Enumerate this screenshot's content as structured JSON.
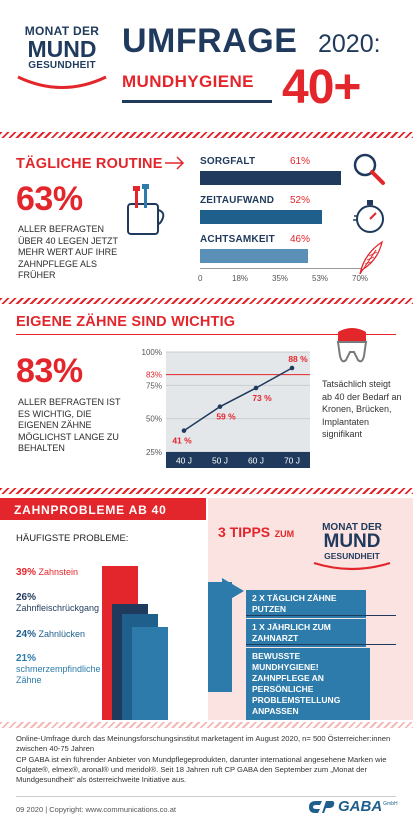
{
  "header": {
    "logo_line1": "MONAT DER",
    "logo_line2": "MUND",
    "logo_line3": "GESUNDHEIT",
    "title": "UMFRAGE",
    "year": "2020:",
    "subtitle": "MUNDHYGIENE",
    "age": "40+"
  },
  "routine": {
    "title": "TÄGLICHE ROUTINE",
    "big_pct": "63%",
    "text": "ALLER BEFRAGTEN ÜBER 40 LEGEN JETZT MEHR WERT AUF IHRE ZAHNPFLEGE ALS FRÜHER",
    "bars": [
      {
        "label": "SORGFALT",
        "pct": "61%",
        "value": 61
      },
      {
        "label": "ZEITAUFWAND",
        "pct": "52%",
        "value": 52
      },
      {
        "label": "ACHTSAMKEIT",
        "pct": "46%",
        "value": 46
      }
    ],
    "ticks": [
      "0",
      "18%",
      "35%",
      "53%",
      "70%"
    ],
    "icons": [
      "toothbrush-cup-icon",
      "magnifier-icon",
      "stopwatch-icon",
      "feather-icon"
    ]
  },
  "own_teeth": {
    "title": "EIGENE ZÄHNE SIND WICHTIG",
    "big_pct": "83%",
    "text": "ALLER BEFRAGTEN IST ES WICHTIG, DIE EIGENEN ZÄHNE MÖGLICHST LANGE ZU BEHALTEN",
    "side_text": "Tatsächlich steigt ab 40 der Bedarf an Kronen, Brücken, Implantaten signifikant",
    "icon": "tooth-crown-icon"
  },
  "chart_data": {
    "type": "line",
    "categories": [
      "40 J",
      "50 J",
      "60 J",
      "70 J"
    ],
    "values": [
      41,
      59,
      73,
      88
    ],
    "labels": [
      "41 %",
      "59 %",
      "73 %",
      "88 %"
    ],
    "reference_line": 83,
    "reference_label": "83%",
    "y_ticks": [
      "100%",
      "75%",
      "50%",
      "25%"
    ],
    "ylim": [
      25,
      100
    ]
  },
  "problems": {
    "title": "ZAHNPROBLEME AB 40",
    "subtitle": "HÄUFIGSTE PROBLEME:",
    "items": [
      {
        "pct": "39%",
        "label": "Zahnstein",
        "value": 39,
        "color": "#e2262b"
      },
      {
        "pct": "26%",
        "label": "Zahnfleischrückgang",
        "value": 26,
        "color": "#1f3a5c"
      },
      {
        "pct": "24%",
        "label": "Zahnlücken",
        "value": 24,
        "color": "#1f5f8b"
      },
      {
        "pct": "21%",
        "label": "schmerzempfindliche Zähne",
        "value": 21,
        "color": "#2c7bab"
      }
    ]
  },
  "tips": {
    "title": "3 TIPPS",
    "zum": "ZUM",
    "logo_line1": "MONAT DER",
    "logo_line2": "MUND",
    "logo_line3": "GESUNDHEIT",
    "items": [
      "2 X TÄGLICH ZÄHNE PUTZEN",
      "1 X JÄHRLICH ZUM ZAHNARZT",
      "BEWUSSTE MUNDHYGIENE! ZAHNPFLEGE AN PERSÖNLICHE PROBLEMSTELLUNG ANPASSEN"
    ]
  },
  "footer": {
    "line1": "Online-Umfrage durch das Meinungsforschungsinstitut marketagent im August 2020, n= 500 Österreicher:innen zwischen 40-75 Jahren",
    "line2": "CP GABA ist ein führender Anbieter von Mundpflegeprodukten, darunter international angesehene Marken wie Colgate®, elmex®, aronal® und meridol®. Seit 18 Jahren ruft CP GABA den September zum „Monat der Mundgesundheit“ als österreichweite Initiative aus.",
    "copyright": "09 2020 | Copyright: www.communications.co.at",
    "brand": "GABA",
    "brand_suffix": "GmbH"
  },
  "colors": {
    "red": "#e2262b",
    "navy": "#1f3a5c",
    "blue": "#2c7bab",
    "pink": "#fbe3e1",
    "steel": "#4a7fa8"
  }
}
